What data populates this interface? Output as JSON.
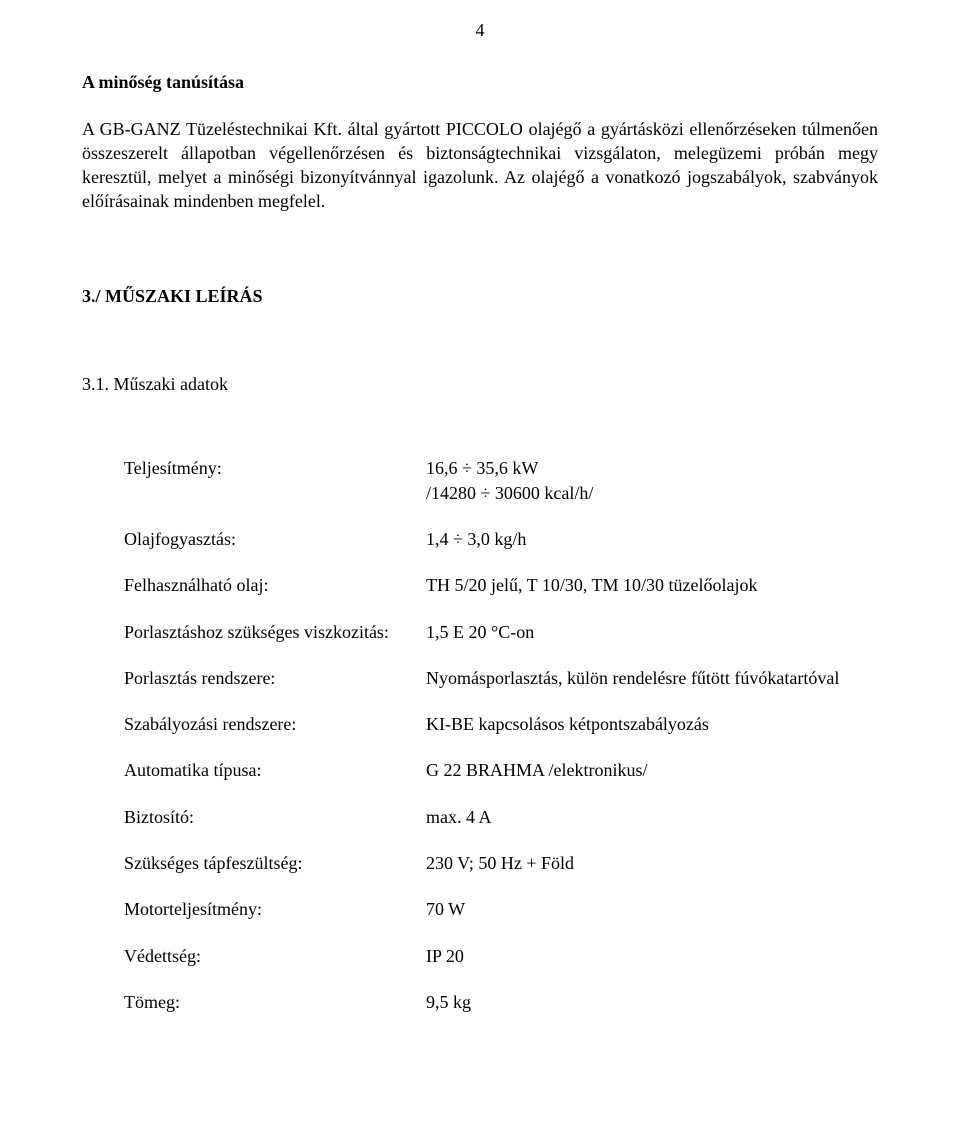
{
  "page": {
    "number": "4"
  },
  "headings": {
    "quality": "A minőség tanúsítása",
    "tech_desc": "3./ MŰSZAKI LEÍRÁS",
    "tech_data": "3.1. Műszaki adatok"
  },
  "paragraphs": {
    "p1": "A GB-GANZ Tüzeléstechnikai Kft. által gyártott PICCOLO olajégő a gyártásközi ellenőrzéseken túlmenően összeszerelt állapotban végellenőrzésen és biztonságtechnikai vizsgálaton, melegüzemi próbán megy keresztül, melyet a minőségi bizonyítvánnyal igazolunk. Az olajégő a vonatkozó jogszabályok, szabványok előírásainak mindenben megfelel."
  },
  "specs": {
    "performance": {
      "label": "Teljesítmény:",
      "value": "16,6 ÷ 35,6 kW"
    },
    "performance2": {
      "value": "/14280 ÷ 30600 kcal/h/"
    },
    "oil_consumption": {
      "label": "Olajfogyasztás:",
      "value": "1,4 ÷ 3,0 kg/h"
    },
    "usable_oil": {
      "label": "Felhasználható olaj:",
      "value": "TH 5/20 jelű, T 10/30, TM 10/30 tüzelőolajok"
    },
    "viscosity": {
      "label": "Porlasztáshoz szükséges viszkozitás:",
      "value": "1,5 E 20 °C-on"
    },
    "atomization": {
      "label": "Porlasztás rendszere:",
      "value": "Nyomásporlasztás, külön rendelésre fűtött fúvókatartóval"
    },
    "regulation": {
      "label": "Szabályozási rendszere:",
      "value": "KI-BE kapcsolásos kétpontszabályozás"
    },
    "automation": {
      "label": "Automatika típusa:",
      "value": "G 22 BRAHMA /elektronikus/"
    },
    "fuse": {
      "label": "Biztosító:",
      "value": "max. 4 A"
    },
    "supply": {
      "label": "Szükséges tápfeszültség:",
      "value": "230 V; 50 Hz + Föld"
    },
    "motor": {
      "label": "Motorteljesítmény:",
      "value": "70 W"
    },
    "protection": {
      "label": "Védettség:",
      "value": "IP 20"
    },
    "weight": {
      "label": "Tömeg:",
      "value": "9,5 kg"
    }
  }
}
